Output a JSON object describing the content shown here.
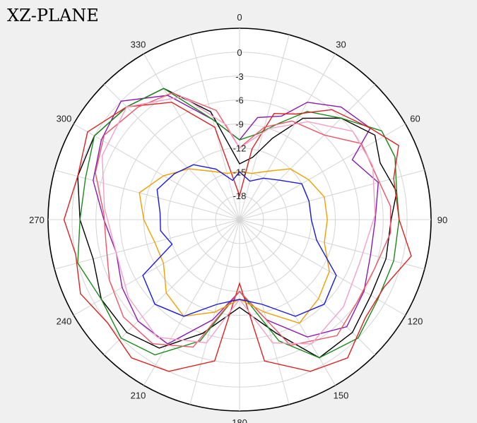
{
  "chart_data": {
    "type": "polar-line",
    "title": "XZ-PLANE",
    "angle_ticks": [
      "0",
      "30",
      "60",
      "90",
      "120",
      "150",
      "180",
      "210",
      "240",
      "270",
      "300",
      "330"
    ],
    "angle_tick_values": [
      0,
      30,
      60,
      90,
      120,
      150,
      180,
      210,
      240,
      270,
      300,
      330
    ],
    "radial_ticks": [
      "0",
      "-3",
      "-6",
      "-9",
      "-12",
      "-15",
      "-18"
    ],
    "radial_tick_values": [
      0,
      -3,
      -6,
      -9,
      -12,
      -15,
      -18
    ],
    "rlim": [
      -21,
      3
    ],
    "angle_direction": "clockwise",
    "zero_location": "top",
    "grid": true,
    "series": [
      {
        "color": "#8b1ab0",
        "points": [
          [
            0,
            -11
          ],
          [
            10,
            -8
          ],
          [
            22,
            -7
          ],
          [
            30,
            -4
          ],
          [
            42,
            -2
          ],
          [
            55,
            -1
          ],
          [
            62,
            -5
          ],
          [
            75,
            -3
          ],
          [
            90,
            -4
          ],
          [
            105,
            -4
          ],
          [
            120,
            -3
          ],
          [
            135,
            -2
          ],
          [
            150,
            -4
          ],
          [
            165,
            -8
          ],
          [
            180,
            -12
          ],
          [
            195,
            -8
          ],
          [
            210,
            -3
          ],
          [
            225,
            -3
          ],
          [
            240,
            -4
          ],
          [
            255,
            -5
          ],
          [
            270,
            -4
          ],
          [
            285,
            -2
          ],
          [
            300,
            -1
          ],
          [
            315,
            0
          ],
          [
            330,
            -3
          ],
          [
            345,
            -8
          ]
        ]
      },
      {
        "color": "#000000",
        "points": [
          [
            0,
            -14
          ],
          [
            12,
            -13
          ],
          [
            22,
            -10
          ],
          [
            32,
            -6
          ],
          [
            45,
            -3
          ],
          [
            58,
            -1
          ],
          [
            68,
            -2
          ],
          [
            80,
            -1
          ],
          [
            90,
            -2
          ],
          [
            105,
            -2
          ],
          [
            120,
            -2
          ],
          [
            135,
            -1
          ],
          [
            150,
            -1
          ],
          [
            162,
            -6
          ],
          [
            180,
            -10
          ],
          [
            198,
            -6
          ],
          [
            212,
            -2
          ],
          [
            225,
            -1
          ],
          [
            240,
            -1
          ],
          [
            255,
            -2
          ],
          [
            270,
            -1
          ],
          [
            285,
            0
          ],
          [
            300,
            0
          ],
          [
            315,
            -1
          ],
          [
            330,
            -2
          ],
          [
            345,
            -7
          ]
        ]
      },
      {
        "color": "#1a8a1a",
        "points": [
          [
            0,
            -11
          ],
          [
            12,
            -10
          ],
          [
            22,
            -8
          ],
          [
            32,
            -5
          ],
          [
            45,
            -3
          ],
          [
            58,
            0
          ],
          [
            68,
            0
          ],
          [
            80,
            -1
          ],
          [
            90,
            -1
          ],
          [
            105,
            -1
          ],
          [
            120,
            -1
          ],
          [
            135,
            0
          ],
          [
            150,
            -1
          ],
          [
            162,
            -5
          ],
          [
            180,
            -12
          ],
          [
            198,
            -5
          ],
          [
            212,
            -1
          ],
          [
            225,
            0
          ],
          [
            240,
            -1
          ],
          [
            255,
            0
          ],
          [
            270,
            -1
          ],
          [
            285,
            -1
          ],
          [
            300,
            0
          ],
          [
            315,
            -1
          ],
          [
            330,
            -2
          ],
          [
            345,
            -8
          ]
        ]
      },
      {
        "color": "#dd2222",
        "points": [
          [
            0,
            -18
          ],
          [
            10,
            -12
          ],
          [
            18,
            -7
          ],
          [
            28,
            -6
          ],
          [
            40,
            -3
          ],
          [
            55,
            -1
          ],
          [
            65,
            1
          ],
          [
            75,
            -1
          ],
          [
            90,
            -1
          ],
          [
            102,
            1
          ],
          [
            115,
            -1
          ],
          [
            128,
            -1
          ],
          [
            142,
            1
          ],
          [
            155,
            0
          ],
          [
            170,
            -3
          ],
          [
            180,
            -13
          ],
          [
            190,
            -3
          ],
          [
            205,
            0
          ],
          [
            218,
            1
          ],
          [
            232,
            0
          ],
          [
            245,
            1
          ],
          [
            258,
            0
          ],
          [
            270,
            1
          ],
          [
            285,
            0
          ],
          [
            300,
            1
          ],
          [
            315,
            -1
          ],
          [
            330,
            -4
          ],
          [
            345,
            -9
          ]
        ]
      },
      {
        "color": "#ee5566",
        "points": [
          [
            0,
            -12
          ],
          [
            15,
            -9
          ],
          [
            28,
            -7
          ],
          [
            45,
            -6
          ],
          [
            58,
            -3
          ],
          [
            72,
            -3
          ],
          [
            85,
            -2
          ],
          [
            95,
            -2
          ],
          [
            110,
            -3
          ],
          [
            125,
            -3
          ],
          [
            140,
            -2
          ],
          [
            158,
            -4
          ],
          [
            180,
            -12
          ],
          [
            200,
            -4
          ],
          [
            215,
            -2
          ],
          [
            230,
            -2
          ],
          [
            245,
            -3
          ],
          [
            260,
            -4
          ],
          [
            272,
            -4
          ],
          [
            288,
            -2
          ],
          [
            302,
            -1
          ],
          [
            318,
            -2
          ],
          [
            332,
            -3
          ],
          [
            348,
            -7
          ]
        ]
      },
      {
        "color": "#f2a0c8",
        "points": [
          [
            0,
            -12
          ],
          [
            18,
            -9
          ],
          [
            35,
            -6
          ],
          [
            52,
            -3
          ],
          [
            68,
            -3
          ],
          [
            88,
            -4
          ],
          [
            110,
            -5
          ],
          [
            130,
            -4
          ],
          [
            150,
            -3
          ],
          [
            165,
            -5
          ],
          [
            180,
            -11
          ],
          [
            195,
            -5
          ],
          [
            215,
            -3
          ],
          [
            235,
            -4
          ],
          [
            255,
            -5
          ],
          [
            275,
            -4
          ],
          [
            295,
            -2
          ],
          [
            315,
            -1
          ],
          [
            335,
            -4
          ],
          [
            352,
            -9
          ]
        ]
      },
      {
        "color": "#f0a000",
        "points": [
          [
            0,
            -15
          ],
          [
            15,
            -15
          ],
          [
            30,
            -14
          ],
          [
            45,
            -12
          ],
          [
            60,
            -11
          ],
          [
            75,
            -10
          ],
          [
            90,
            -10
          ],
          [
            105,
            -10
          ],
          [
            120,
            -8
          ],
          [
            135,
            -7
          ],
          [
            150,
            -6
          ],
          [
            165,
            -9
          ],
          [
            180,
            -11
          ],
          [
            195,
            -9
          ],
          [
            210,
            -7
          ],
          [
            225,
            -8
          ],
          [
            240,
            -10
          ],
          [
            255,
            -10
          ],
          [
            270,
            -9
          ],
          [
            285,
            -8
          ],
          [
            300,
            -10
          ],
          [
            315,
            -12
          ],
          [
            330,
            -14
          ],
          [
            345,
            -15
          ]
        ]
      },
      {
        "color": "#1a1ae0",
        "points": [
          [
            0,
            -15
          ],
          [
            15,
            -16
          ],
          [
            30,
            -15
          ],
          [
            45,
            -14
          ],
          [
            60,
            -12
          ],
          [
            75,
            -12
          ],
          [
            90,
            -12
          ],
          [
            105,
            -11
          ],
          [
            120,
            -7
          ],
          [
            135,
            -6
          ],
          [
            150,
            -7
          ],
          [
            165,
            -10
          ],
          [
            180,
            -11
          ],
          [
            195,
            -10
          ],
          [
            210,
            -7
          ],
          [
            225,
            -6
          ],
          [
            240,
            -7
          ],
          [
            250,
            -12
          ],
          [
            262,
            -11
          ],
          [
            275,
            -11
          ],
          [
            290,
            -10
          ],
          [
            305,
            -11
          ],
          [
            320,
            -12
          ],
          [
            335,
            -14
          ],
          [
            350,
            -16
          ]
        ]
      }
    ]
  }
}
